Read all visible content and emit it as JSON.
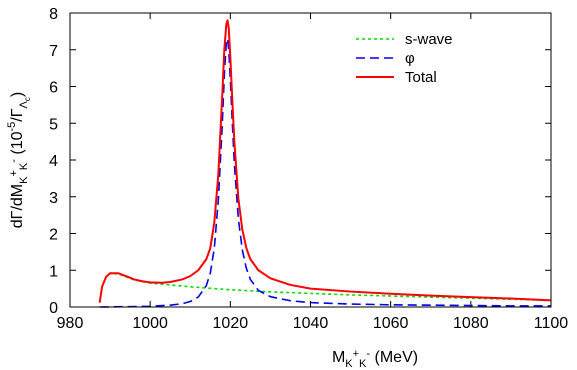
{
  "chart_data": {
    "type": "line",
    "xlabel": {
      "main": "M",
      "sub": "K",
      "sup1": "+",
      "sub2": "K",
      "sup2": "-",
      "unit": " (MeV)"
    },
    "ylabel": {
      "main": "dΓ/dM",
      "sub": "K",
      "sup1": "+",
      "sub2": "K",
      "sup2": "-",
      "unit_open": " (10",
      "unit_exp": "-5",
      "unit_mid": "/Γ",
      "unit_sub": "Λ",
      "unit_subsub": "c",
      "unit_close": ")"
    },
    "xlim": [
      980,
      1100
    ],
    "ylim": [
      0,
      8
    ],
    "xticks": [
      980,
      1000,
      1020,
      1040,
      1060,
      1080,
      1100
    ],
    "yticks": [
      0,
      1,
      2,
      3,
      4,
      5,
      6,
      7,
      8
    ],
    "grid": false,
    "legend_position": "top-right",
    "series": [
      {
        "name": "s-wave",
        "color": "#00dd00",
        "style": "dotted",
        "x": [
          987.4,
          988,
          989,
          990,
          992,
          994,
          996,
          998,
          1000,
          1005,
          1010,
          1015,
          1020,
          1025,
          1030,
          1040,
          1050,
          1060,
          1070,
          1080,
          1090,
          1100
        ],
        "y": [
          0.12,
          0.55,
          0.82,
          0.92,
          0.9,
          0.82,
          0.74,
          0.69,
          0.65,
          0.6,
          0.55,
          0.51,
          0.47,
          0.44,
          0.41,
          0.37,
          0.33,
          0.3,
          0.27,
          0.24,
          0.21,
          0.18
        ]
      },
      {
        "name": "φ",
        "color": "#0000ee",
        "style": "dashed",
        "x": [
          987.4,
          995,
          1000,
          1005,
          1008,
          1010,
          1012,
          1014,
          1015,
          1016,
          1017,
          1018,
          1018.5,
          1019,
          1019.3,
          1019.6,
          1020,
          1020.5,
          1021,
          1022,
          1023,
          1024,
          1025,
          1027,
          1030,
          1035,
          1040,
          1050,
          1060,
          1070,
          1080,
          1090,
          1100
        ],
        "y": [
          0.0,
          0.01,
          0.02,
          0.05,
          0.09,
          0.15,
          0.27,
          0.58,
          0.92,
          1.6,
          2.9,
          5.0,
          6.3,
          7.2,
          7.3,
          7.0,
          6.2,
          5.0,
          3.9,
          2.4,
          1.55,
          1.05,
          0.75,
          0.45,
          0.28,
          0.17,
          0.12,
          0.08,
          0.06,
          0.05,
          0.04,
          0.03,
          0.03
        ]
      },
      {
        "name": "Total",
        "color": "#ff0000",
        "style": "solid",
        "x": [
          987.4,
          988,
          989,
          990,
          992,
          994,
          996,
          998,
          1000,
          1003,
          1005,
          1008,
          1010,
          1012,
          1014,
          1015,
          1016,
          1017,
          1018,
          1018.5,
          1019,
          1019.3,
          1019.6,
          1020,
          1020.5,
          1021,
          1022,
          1023,
          1024,
          1025,
          1027,
          1030,
          1035,
          1040,
          1050,
          1060,
          1070,
          1080,
          1090,
          1100
        ],
        "y": [
          0.12,
          0.55,
          0.82,
          0.92,
          0.92,
          0.84,
          0.75,
          0.7,
          0.67,
          0.66,
          0.68,
          0.75,
          0.84,
          1.0,
          1.3,
          1.6,
          2.3,
          3.6,
          5.8,
          7.0,
          7.7,
          7.8,
          7.6,
          6.8,
          5.6,
          4.5,
          2.95,
          2.1,
          1.6,
          1.3,
          1.0,
          0.78,
          0.6,
          0.5,
          0.42,
          0.36,
          0.31,
          0.27,
          0.23,
          0.18
        ]
      }
    ]
  }
}
